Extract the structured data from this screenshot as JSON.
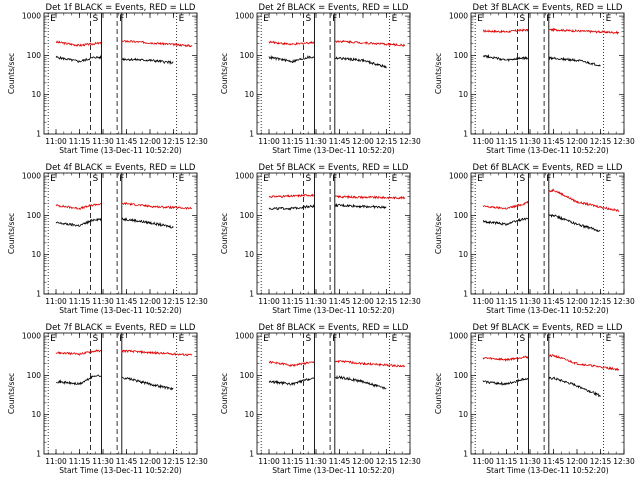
{
  "chart_data": {
    "type": "line",
    "layout": "3x3 grid",
    "shared": {
      "xlabel": "Start Time (13-Dec-11 10:52:20)",
      "ylabel": "Counts/sec",
      "x_ticks": [
        "11:00",
        "11:15",
        "11:30",
        "11:45",
        "12:00",
        "12:15",
        "12:30"
      ],
      "y_ticks": [
        "1",
        "10",
        "100",
        "1000"
      ],
      "x_range": [
        "10:52:20",
        "12:30:00"
      ],
      "ylim": [
        1,
        1200
      ],
      "y_scale": "log",
      "series_colors": {
        "events": "#000000",
        "lld": "#e00000"
      },
      "markers": [
        {
          "label": "E",
          "time": "10:55",
          "style": "dotted"
        },
        {
          "label": "S",
          "time": "11:22",
          "style": "dashed"
        },
        {
          "label": "F",
          "time": "11:39",
          "style": "dashed"
        },
        {
          "label": "E",
          "time": "12:17",
          "style": "dotted"
        }
      ],
      "gap_window": [
        "11:29",
        "11:42"
      ]
    },
    "panels": [
      {
        "title": "Det 1f BLACK = Events, RED = LLD",
        "events": [
          {
            "x": "11:00",
            "y": 90
          },
          {
            "x": "11:15",
            "y": 70
          },
          {
            "x": "11:25",
            "y": 90
          },
          {
            "x": "11:45",
            "y": 80
          },
          {
            "x": "12:00",
            "y": 75
          },
          {
            "x": "12:15",
            "y": 65
          }
        ],
        "lld": [
          {
            "x": "11:00",
            "y": 220
          },
          {
            "x": "11:15",
            "y": 180
          },
          {
            "x": "11:25",
            "y": 200
          },
          {
            "x": "11:45",
            "y": 230
          },
          {
            "x": "12:00",
            "y": 210
          },
          {
            "x": "12:27",
            "y": 175
          }
        ]
      },
      {
        "title": "Det 2f BLACK = Events, RED = LLD",
        "events": [
          {
            "x": "11:00",
            "y": 90
          },
          {
            "x": "11:15",
            "y": 70
          },
          {
            "x": "11:25",
            "y": 90
          },
          {
            "x": "11:45",
            "y": 85
          },
          {
            "x": "12:00",
            "y": 75
          },
          {
            "x": "12:15",
            "y": 50
          }
        ],
        "lld": [
          {
            "x": "11:00",
            "y": 220
          },
          {
            "x": "11:15",
            "y": 190
          },
          {
            "x": "11:25",
            "y": 210
          },
          {
            "x": "11:45",
            "y": 230
          },
          {
            "x": "12:00",
            "y": 210
          },
          {
            "x": "12:27",
            "y": 180
          }
        ]
      },
      {
        "title": "Det 3f BLACK = Events, RED = LLD",
        "events": [
          {
            "x": "11:00",
            "y": 100
          },
          {
            "x": "11:15",
            "y": 75
          },
          {
            "x": "11:25",
            "y": 85
          },
          {
            "x": "11:45",
            "y": 85
          },
          {
            "x": "12:00",
            "y": 75
          },
          {
            "x": "12:15",
            "y": 55
          }
        ],
        "lld": [
          {
            "x": "11:00",
            "y": 420
          },
          {
            "x": "11:15",
            "y": 400
          },
          {
            "x": "11:25",
            "y": 440
          },
          {
            "x": "11:45",
            "y": 450
          },
          {
            "x": "12:00",
            "y": 420
          },
          {
            "x": "12:27",
            "y": 380
          }
        ]
      },
      {
        "title": "Det 4f BLACK = Events, RED = LLD",
        "events": [
          {
            "x": "11:00",
            "y": 65
          },
          {
            "x": "11:15",
            "y": 55
          },
          {
            "x": "11:25",
            "y": 80
          },
          {
            "x": "11:45",
            "y": 80
          },
          {
            "x": "12:00",
            "y": 65
          },
          {
            "x": "12:15",
            "y": 50
          }
        ],
        "lld": [
          {
            "x": "11:00",
            "y": 180
          },
          {
            "x": "11:15",
            "y": 150
          },
          {
            "x": "11:25",
            "y": 190
          },
          {
            "x": "11:45",
            "y": 200
          },
          {
            "x": "12:00",
            "y": 170
          },
          {
            "x": "12:27",
            "y": 150
          }
        ]
      },
      {
        "title": "Det 5f BLACK = Events, RED = LLD",
        "events": [
          {
            "x": "11:00",
            "y": 150
          },
          {
            "x": "11:15",
            "y": 150
          },
          {
            "x": "11:25",
            "y": 170
          },
          {
            "x": "11:45",
            "y": 180
          },
          {
            "x": "12:00",
            "y": 170
          },
          {
            "x": "12:15",
            "y": 160
          }
        ],
        "lld": [
          {
            "x": "11:00",
            "y": 300
          },
          {
            "x": "11:15",
            "y": 310
          },
          {
            "x": "11:25",
            "y": 330
          },
          {
            "x": "11:45",
            "y": 300
          },
          {
            "x": "12:00",
            "y": 290
          },
          {
            "x": "12:27",
            "y": 280
          }
        ]
      },
      {
        "title": "Det 6f BLACK = Events, RED = LLD",
        "events": [
          {
            "x": "11:00",
            "y": 70
          },
          {
            "x": "11:15",
            "y": 60
          },
          {
            "x": "11:25",
            "y": 80
          },
          {
            "x": "11:45",
            "y": 100
          },
          {
            "x": "12:00",
            "y": 60
          },
          {
            "x": "12:15",
            "y": 40
          }
        ],
        "lld": [
          {
            "x": "11:00",
            "y": 170
          },
          {
            "x": "11:15",
            "y": 150
          },
          {
            "x": "11:25",
            "y": 190
          },
          {
            "x": "11:45",
            "y": 450
          },
          {
            "x": "12:00",
            "y": 220
          },
          {
            "x": "12:27",
            "y": 130
          }
        ]
      },
      {
        "title": "Det 7f BLACK = Events, RED = LLD",
        "events": [
          {
            "x": "11:00",
            "y": 70
          },
          {
            "x": "11:15",
            "y": 60
          },
          {
            "x": "11:25",
            "y": 100
          },
          {
            "x": "11:45",
            "y": 85
          },
          {
            "x": "12:00",
            "y": 60
          },
          {
            "x": "12:15",
            "y": 45
          }
        ],
        "lld": [
          {
            "x": "11:00",
            "y": 380
          },
          {
            "x": "11:15",
            "y": 350
          },
          {
            "x": "11:25",
            "y": 420
          },
          {
            "x": "11:45",
            "y": 420
          },
          {
            "x": "12:00",
            "y": 380
          },
          {
            "x": "12:27",
            "y": 330
          }
        ]
      },
      {
        "title": "Det 8f BLACK = Events, RED = LLD",
        "events": [
          {
            "x": "11:00",
            "y": 70
          },
          {
            "x": "11:15",
            "y": 60
          },
          {
            "x": "11:25",
            "y": 80
          },
          {
            "x": "11:45",
            "y": 90
          },
          {
            "x": "12:00",
            "y": 70
          },
          {
            "x": "12:15",
            "y": 45
          }
        ],
        "lld": [
          {
            "x": "11:00",
            "y": 220
          },
          {
            "x": "11:15",
            "y": 180
          },
          {
            "x": "11:25",
            "y": 210
          },
          {
            "x": "11:45",
            "y": 230
          },
          {
            "x": "12:00",
            "y": 200
          },
          {
            "x": "12:27",
            "y": 170
          }
        ]
      },
      {
        "title": "Det 9f BLACK = Events, RED = LLD",
        "events": [
          {
            "x": "11:00",
            "y": 70
          },
          {
            "x": "11:15",
            "y": 60
          },
          {
            "x": "11:25",
            "y": 80
          },
          {
            "x": "11:45",
            "y": 85
          },
          {
            "x": "12:00",
            "y": 55
          },
          {
            "x": "12:15",
            "y": 30
          }
        ],
        "lld": [
          {
            "x": "11:00",
            "y": 280
          },
          {
            "x": "11:15",
            "y": 250
          },
          {
            "x": "11:25",
            "y": 290
          },
          {
            "x": "11:45",
            "y": 320
          },
          {
            "x": "12:00",
            "y": 200
          },
          {
            "x": "12:27",
            "y": 140
          }
        ]
      }
    ]
  }
}
